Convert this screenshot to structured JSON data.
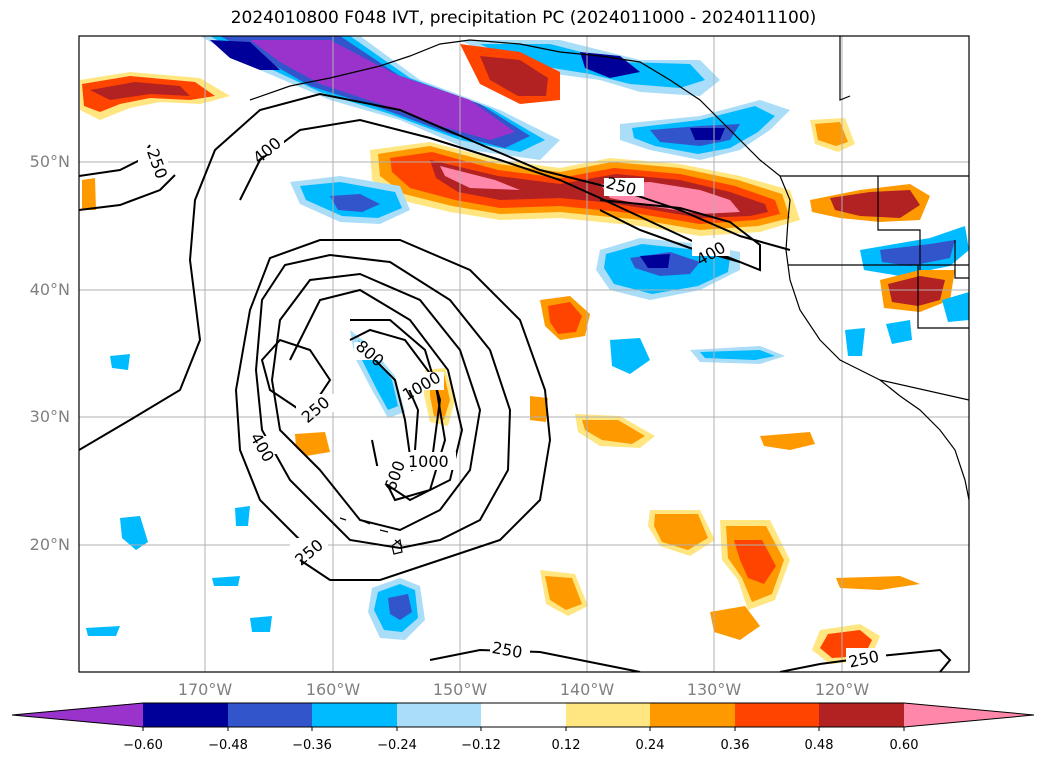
{
  "title": "2024010800 F048 IVT, precipitation PC (2024011000 - 2024011100)",
  "lat_labels": [
    "50°N",
    "40°N",
    "30°N",
    "20°N"
  ],
  "lon_labels": [
    "170°W",
    "160°W",
    "150°W",
    "140°W",
    "130°W",
    "120°W"
  ],
  "colorbar": {
    "ticks": [
      "−0.60",
      "−0.48",
      "−0.36",
      "−0.24",
      "−0.12",
      "0.12",
      "0.24",
      "0.36",
      "0.48",
      "0.60"
    ],
    "colors": [
      "#9933cc",
      "#000099",
      "#3355cc",
      "#00bbff",
      "#aaddf7",
      "#ffffff",
      "#ffe680",
      "#ff9900",
      "#ff4400",
      "#b22222",
      "#ff88aa"
    ]
  },
  "ivt_contour_labels": [
    "250",
    "400",
    "250",
    "400",
    "800",
    "1000",
    "250",
    "400",
    "600",
    "1000",
    "250",
    "250",
    "250"
  ]
}
